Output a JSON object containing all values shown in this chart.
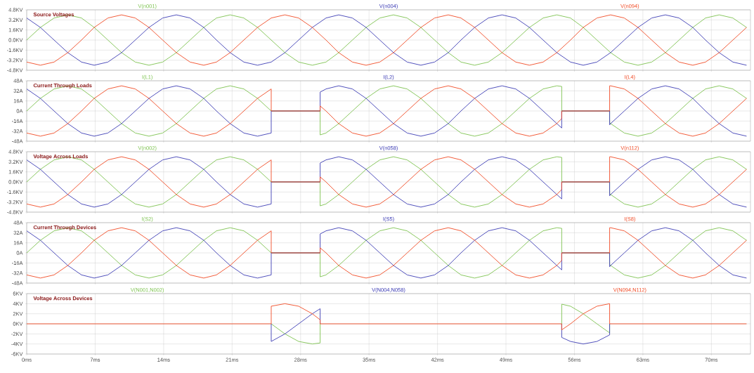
{
  "chart_data": [
    {
      "type": "line",
      "title": "Source Voltages",
      "grid": true,
      "tick_labels": "y",
      "x": [
        0,
        1.4,
        2.8,
        4.2,
        5.6,
        6.9,
        8.3,
        9.7,
        11.1,
        12.5,
        13.9,
        15.3,
        16.7,
        18.1,
        19.4,
        20.8,
        22.2,
        23.6,
        25.0,
        26.4,
        27.8,
        29.2,
        30.6,
        31.9,
        33.3,
        34.7,
        36.1,
        37.5,
        38.9,
        40.3,
        41.7,
        43.1,
        44.4,
        45.8,
        47.2,
        48.6,
        50.0,
        51.4,
        52.8,
        54.2,
        55.6,
        56.9,
        58.3,
        59.7,
        61.1,
        62.5,
        63.9,
        65.3,
        66.7,
        68.1,
        69.4,
        70.8,
        72.2,
        73.6
      ],
      "xlim": [
        0,
        74
      ],
      "xticks": [
        0,
        7,
        14,
        21,
        28,
        35,
        42,
        49,
        56,
        63,
        70
      ],
      "ylim": [
        -4.8,
        4.8
      ],
      "yticks": [
        {
          "value": 4.8,
          "label": "4.8KV"
        },
        {
          "value": 3.2,
          "label": "3.2KV"
        },
        {
          "value": 1.6,
          "label": "1.6KV"
        },
        {
          "value": 0,
          "label": "0.0KV"
        },
        {
          "value": -1.6,
          "label": "-1.6KV"
        },
        {
          "value": -3.2,
          "label": "-3.2KV"
        },
        {
          "value": -4.8,
          "label": "-4.8KV"
        }
      ],
      "series": [
        {
          "name": "V(n001)",
          "color": "#7cc24e",
          "values": [
            0,
            2,
            3.5,
            4,
            3.5,
            2,
            0,
            -2,
            -3.5,
            -4,
            -3.5,
            -2,
            0,
            2,
            3.5,
            4,
            3.5,
            2,
            0,
            -2,
            -3.5,
            -4,
            -3.5,
            -2,
            0,
            2,
            3.5,
            4,
            3.5,
            2,
            0,
            -2,
            -3.5,
            -4,
            -3.5,
            -2,
            0,
            2,
            3.5,
            4,
            3.5,
            2,
            0,
            -2,
            -3.5,
            -4,
            -3.5,
            -2,
            0,
            2,
            3.5,
            4,
            3.5,
            2
          ]
        },
        {
          "name": "V(n004)",
          "color": "#3c3cb4",
          "values": [
            3.5,
            2,
            0,
            -2,
            -3.5,
            -4,
            -3.5,
            -2,
            0,
            2,
            3.5,
            4,
            3.5,
            2,
            0,
            -2,
            -3.5,
            -4,
            -3.5,
            -2,
            0,
            2,
            3.5,
            4,
            3.5,
            2,
            0,
            -2,
            -3.5,
            -4,
            -3.5,
            -2,
            0,
            2,
            3.5,
            4,
            3.5,
            2,
            0,
            -2,
            -3.5,
            -4,
            -3.5,
            -2,
            0,
            2,
            3.5,
            4,
            3.5,
            2,
            0,
            -2,
            -3.5,
            -4
          ]
        },
        {
          "name": "V(n094)",
          "color": "#f04a24",
          "values": [
            -3.5,
            -4,
            -3.5,
            -2,
            0,
            2,
            3.5,
            4,
            3.5,
            2,
            0,
            -2,
            -3.5,
            -4,
            -3.5,
            -2,
            0,
            2,
            3.5,
            4,
            3.5,
            2,
            0,
            -2,
            -3.5,
            -4,
            -3.5,
            -2,
            0,
            2,
            3.5,
            4,
            3.5,
            2,
            0,
            -2,
            -3.5,
            -4,
            -3.5,
            -2,
            0,
            2,
            3.5,
            4,
            3.5,
            2,
            0,
            -2,
            -3.5,
            -4,
            -3.5,
            -2,
            0,
            2
          ]
        }
      ]
    },
    {
      "type": "line",
      "title": "Current Through Loads",
      "grid": true,
      "tick_labels": "y",
      "x": [
        0,
        1.4,
        2.8,
        4.2,
        5.6,
        6.9,
        8.3,
        9.7,
        11.1,
        12.5,
        13.9,
        15.3,
        16.7,
        18.1,
        19.4,
        20.8,
        22.2,
        23.6,
        25.0,
        25.0,
        30.0,
        30.0,
        30.6,
        31.9,
        33.3,
        34.7,
        36.1,
        37.5,
        38.9,
        40.3,
        41.7,
        43.1,
        44.4,
        45.8,
        47.2,
        48.6,
        50.0,
        51.4,
        52.8,
        54.2,
        54.7,
        54.7,
        59.6,
        59.6,
        59.7,
        61.1,
        62.5,
        63.9,
        65.3,
        66.7,
        68.1,
        69.4,
        70.8,
        72.2,
        73.6
      ],
      "xlim": [
        0,
        74
      ],
      "xticks": [
        0,
        7,
        14,
        21,
        28,
        35,
        42,
        49,
        56,
        63,
        70
      ],
      "ylim": [
        -48,
        48
      ],
      "yticks": [
        {
          "value": 48,
          "label": "48A"
        },
        {
          "value": 32,
          "label": "32A"
        },
        {
          "value": 16,
          "label": "16A"
        },
        {
          "value": 0,
          "label": "0A"
        },
        {
          "value": -16,
          "label": "-16A"
        },
        {
          "value": -32,
          "label": "-32A"
        },
        {
          "value": -48,
          "label": "-48A"
        }
      ],
      "series": [
        {
          "name": "I(L1)",
          "color": "#7cc24e",
          "values": [
            0,
            20,
            35,
            40,
            35,
            20,
            0,
            -20,
            -35,
            -40,
            -35,
            -20,
            0,
            20,
            35,
            40,
            35,
            20,
            0,
            0,
            0,
            -38,
            -35,
            -20,
            0,
            20,
            35,
            40,
            35,
            20,
            0,
            -20,
            -35,
            -40,
            -35,
            -20,
            0,
            20,
            35,
            40,
            39,
            0,
            0,
            -18,
            -20,
            -35,
            -40,
            -35,
            -20,
            0,
            20,
            35,
            40,
            35,
            20
          ]
        },
        {
          "name": "I(L2)",
          "color": "#3c3cb4",
          "values": [
            35,
            20,
            0,
            -20,
            -35,
            -40,
            -35,
            -20,
            0,
            20,
            35,
            40,
            35,
            20,
            0,
            -20,
            -35,
            -40,
            -35,
            0,
            0,
            30,
            35,
            40,
            35,
            20,
            0,
            -20,
            -35,
            -40,
            -35,
            -20,
            0,
            20,
            35,
            40,
            35,
            20,
            0,
            -20,
            -27,
            0,
            0,
            -22,
            -20,
            0,
            20,
            35,
            40,
            35,
            20,
            0,
            -20,
            -35,
            -40
          ]
        },
        {
          "name": "I(L4)",
          "color": "#f04a24",
          "values": [
            -35,
            -40,
            -35,
            -20,
            0,
            20,
            35,
            40,
            35,
            20,
            0,
            -20,
            -35,
            -40,
            -35,
            -20,
            0,
            20,
            35,
            0,
            0,
            8,
            0,
            -20,
            -35,
            -40,
            -35,
            -20,
            0,
            20,
            35,
            40,
            35,
            20,
            0,
            -20,
            -35,
            -40,
            -35,
            -20,
            -12,
            0,
            0,
            40,
            40,
            35,
            20,
            0,
            -20,
            -35,
            -40,
            -35,
            -20,
            0,
            20
          ]
        }
      ]
    },
    {
      "type": "line",
      "title": "Voltage Across Loads",
      "grid": true,
      "tick_labels": "y",
      "x": [
        0,
        1.4,
        2.8,
        4.2,
        5.6,
        6.9,
        8.3,
        9.7,
        11.1,
        12.5,
        13.9,
        15.3,
        16.7,
        18.1,
        19.4,
        20.8,
        22.2,
        23.6,
        25.0,
        25.0,
        30.0,
        30.0,
        30.6,
        31.9,
        33.3,
        34.7,
        36.1,
        37.5,
        38.9,
        40.3,
        41.7,
        43.1,
        44.4,
        45.8,
        47.2,
        48.6,
        50.0,
        51.4,
        52.8,
        54.2,
        54.7,
        54.7,
        59.6,
        59.6,
        59.7,
        61.1,
        62.5,
        63.9,
        65.3,
        66.7,
        68.1,
        69.4,
        70.8,
        72.2,
        73.6
      ],
      "xlim": [
        0,
        74
      ],
      "xticks": [
        0,
        7,
        14,
        21,
        28,
        35,
        42,
        49,
        56,
        63,
        70
      ],
      "ylim": [
        -4.8,
        4.8
      ],
      "yticks": [
        {
          "value": 4.8,
          "label": "4.8KV"
        },
        {
          "value": 3.2,
          "label": "3.2KV"
        },
        {
          "value": 1.6,
          "label": "1.6KV"
        },
        {
          "value": 0,
          "label": "0.0KV"
        },
        {
          "value": -1.6,
          "label": "-1.6KV"
        },
        {
          "value": -3.2,
          "label": "-3.2KV"
        },
        {
          "value": -4.8,
          "label": "-4.8KV"
        }
      ],
      "series": [
        {
          "name": "V(n002)",
          "color": "#7cc24e",
          "values": [
            0,
            2,
            3.5,
            4,
            3.5,
            2,
            0,
            -2,
            -3.5,
            -4,
            -3.5,
            -2,
            0,
            2,
            3.5,
            4,
            3.5,
            2,
            0,
            0,
            0,
            -3.8,
            -3.5,
            -2,
            0,
            2,
            3.5,
            4,
            3.5,
            2,
            0,
            -2,
            -3.5,
            -4,
            -3.5,
            -2,
            0,
            2,
            3.5,
            4,
            3.9,
            0,
            0,
            -1.8,
            -2,
            -3.5,
            -4,
            -3.5,
            -2,
            0,
            2,
            3.5,
            4,
            3.5,
            2
          ]
        },
        {
          "name": "V(n058)",
          "color": "#3c3cb4",
          "values": [
            3.5,
            2,
            0,
            -2,
            -3.5,
            -4,
            -3.5,
            -2,
            0,
            2,
            3.5,
            4,
            3.5,
            2,
            0,
            -2,
            -3.5,
            -4,
            -3.5,
            0,
            0,
            3.0,
            3.5,
            4,
            3.5,
            2,
            0,
            -2,
            -3.5,
            -4,
            -3.5,
            -2,
            0,
            2,
            3.5,
            4,
            3.5,
            2,
            0,
            -2,
            -2.7,
            0,
            0,
            -2.2,
            -2,
            0,
            2,
            3.5,
            4,
            3.5,
            2,
            0,
            -2,
            -3.5,
            -4
          ]
        },
        {
          "name": "V(n112)",
          "color": "#f04a24",
          "values": [
            -3.5,
            -4,
            -3.5,
            -2,
            0,
            2,
            3.5,
            4,
            3.5,
            2,
            0,
            -2,
            -3.5,
            -4,
            -3.5,
            -2,
            0,
            2,
            3.5,
            0,
            0,
            0.8,
            0,
            -2,
            -3.5,
            -4,
            -3.5,
            -2,
            0,
            2,
            3.5,
            4,
            3.5,
            2,
            0,
            -2,
            -3.5,
            -4,
            -3.5,
            -2,
            -1.2,
            0,
            0,
            4.0,
            4,
            3.5,
            2,
            0,
            -2,
            -3.5,
            -4,
            -3.5,
            -2,
            0,
            2
          ]
        }
      ]
    },
    {
      "type": "line",
      "title": "Current Through Devices",
      "grid": true,
      "tick_labels": "y",
      "x": [
        0,
        1.4,
        2.8,
        4.2,
        5.6,
        6.9,
        8.3,
        9.7,
        11.1,
        12.5,
        13.9,
        15.3,
        16.7,
        18.1,
        19.4,
        20.8,
        22.2,
        23.6,
        25.0,
        25.0,
        30.0,
        30.0,
        30.6,
        31.9,
        33.3,
        34.7,
        36.1,
        37.5,
        38.9,
        40.3,
        41.7,
        43.1,
        44.4,
        45.8,
        47.2,
        48.6,
        50.0,
        51.4,
        52.8,
        54.2,
        54.7,
        54.7,
        59.6,
        59.6,
        59.7,
        61.1,
        62.5,
        63.9,
        65.3,
        66.7,
        68.1,
        69.4,
        70.8,
        72.2,
        73.6
      ],
      "xlim": [
        0,
        74
      ],
      "xticks": [
        0,
        7,
        14,
        21,
        28,
        35,
        42,
        49,
        56,
        63,
        70
      ],
      "ylim": [
        -48,
        48
      ],
      "yticks": [
        {
          "value": 48,
          "label": "48A"
        },
        {
          "value": 32,
          "label": "32A"
        },
        {
          "value": 16,
          "label": "16A"
        },
        {
          "value": 0,
          "label": "0A"
        },
        {
          "value": -16,
          "label": "-16A"
        },
        {
          "value": -32,
          "label": "-32A"
        },
        {
          "value": -48,
          "label": "-48A"
        }
      ],
      "series": [
        {
          "name": "I(S2)",
          "color": "#7cc24e",
          "values": [
            0,
            20,
            35,
            40,
            35,
            20,
            0,
            -20,
            -35,
            -40,
            -35,
            -20,
            0,
            20,
            35,
            40,
            35,
            20,
            0,
            0,
            0,
            -38,
            -35,
            -20,
            0,
            20,
            35,
            40,
            35,
            20,
            0,
            -20,
            -35,
            -40,
            -35,
            -20,
            0,
            20,
            35,
            40,
            39,
            0,
            0,
            -18,
            -20,
            -35,
            -40,
            -35,
            -20,
            0,
            20,
            35,
            40,
            35,
            20
          ]
        },
        {
          "name": "I(S5)",
          "color": "#3c3cb4",
          "values": [
            35,
            20,
            0,
            -20,
            -35,
            -40,
            -35,
            -20,
            0,
            20,
            35,
            40,
            35,
            20,
            0,
            -20,
            -35,
            -40,
            -35,
            0,
            0,
            30,
            35,
            40,
            35,
            20,
            0,
            -20,
            -35,
            -40,
            -35,
            -20,
            0,
            20,
            35,
            40,
            35,
            20,
            0,
            -20,
            -27,
            0,
            0,
            -22,
            -20,
            0,
            20,
            35,
            40,
            35,
            20,
            0,
            -20,
            -35,
            -40
          ]
        },
        {
          "name": "I(S8)",
          "color": "#f04a24",
          "values": [
            -35,
            -40,
            -35,
            -20,
            0,
            20,
            35,
            40,
            35,
            20,
            0,
            -20,
            -35,
            -40,
            -35,
            -20,
            0,
            20,
            35,
            0,
            0,
            8,
            0,
            -20,
            -35,
            -40,
            -35,
            -20,
            0,
            20,
            35,
            40,
            35,
            20,
            0,
            -20,
            -35,
            -40,
            -35,
            -20,
            -12,
            0,
            0,
            40,
            40,
            35,
            20,
            0,
            -20,
            -35,
            -40,
            -35,
            -20,
            0,
            20
          ]
        }
      ]
    },
    {
      "type": "line",
      "title": "Voltage Across Devices",
      "grid": true,
      "x": [
        0,
        25.0,
        25.0,
        26.4,
        27.8,
        29.2,
        30.0,
        30.0,
        54.7,
        54.7,
        55.6,
        56.9,
        58.3,
        59.6,
        59.6,
        73.6
      ],
      "xlim": [
        0,
        74
      ],
      "xticks": [
        {
          "value": 0,
          "label": "0ms"
        },
        {
          "value": 7,
          "label": "7ms"
        },
        {
          "value": 14,
          "label": "14ms"
        },
        {
          "value": 21,
          "label": "21ms"
        },
        {
          "value": 28,
          "label": "28ms"
        },
        {
          "value": 35,
          "label": "35ms"
        },
        {
          "value": 42,
          "label": "42ms"
        },
        {
          "value": 49,
          "label": "49ms"
        },
        {
          "value": 56,
          "label": "56ms"
        },
        {
          "value": 63,
          "label": "63ms"
        },
        {
          "value": 70,
          "label": "70ms"
        }
      ],
      "ylim": [
        -6,
        6
      ],
      "yticks": [
        {
          "value": 6,
          "label": "6KV"
        },
        {
          "value": 4,
          "label": "4KV"
        },
        {
          "value": 2,
          "label": "2KV"
        },
        {
          "value": 0,
          "label": "0KV"
        },
        {
          "value": -2,
          "label": "-2KV"
        },
        {
          "value": -4,
          "label": "-4KV"
        },
        {
          "value": -6,
          "label": "-6KV"
        }
      ],
      "series": [
        {
          "name": "V(N001,N002)",
          "color": "#7cc24e",
          "x": [
            25.0,
            25.0,
            26.4,
            27.8,
            29.2,
            30.0,
            30.0,
            42,
            54.7,
            54.7,
            55.6,
            56.9,
            58.3,
            59.6,
            59.6
          ],
          "values": [
            0,
            0,
            -2,
            -3.5,
            -4,
            -3.8,
            0,
            null,
            0,
            3.9,
            3.5,
            2,
            0,
            -1.8,
            0
          ]
        },
        {
          "name": "V(N004,N058)",
          "color": "#3c3cb4",
          "x": [
            25.0,
            25.0,
            26.4,
            27.8,
            29.2,
            30.0,
            30.0,
            42,
            54.7,
            54.7,
            55.6,
            56.9,
            58.3,
            59.6,
            59.6
          ],
          "values": [
            0,
            -3.5,
            -2,
            0,
            2,
            3.0,
            0,
            null,
            0,
            -2.7,
            -3.5,
            -4,
            -3.5,
            -2.2,
            0
          ]
        },
        {
          "name": "V(N094,N112)",
          "color": "#f04a24",
          "values": [
            0,
            0,
            3.5,
            4,
            3.5,
            2,
            0.8,
            0,
            0,
            -1.2,
            0,
            2,
            3.5,
            4.0,
            0,
            0
          ]
        }
      ]
    }
  ]
}
